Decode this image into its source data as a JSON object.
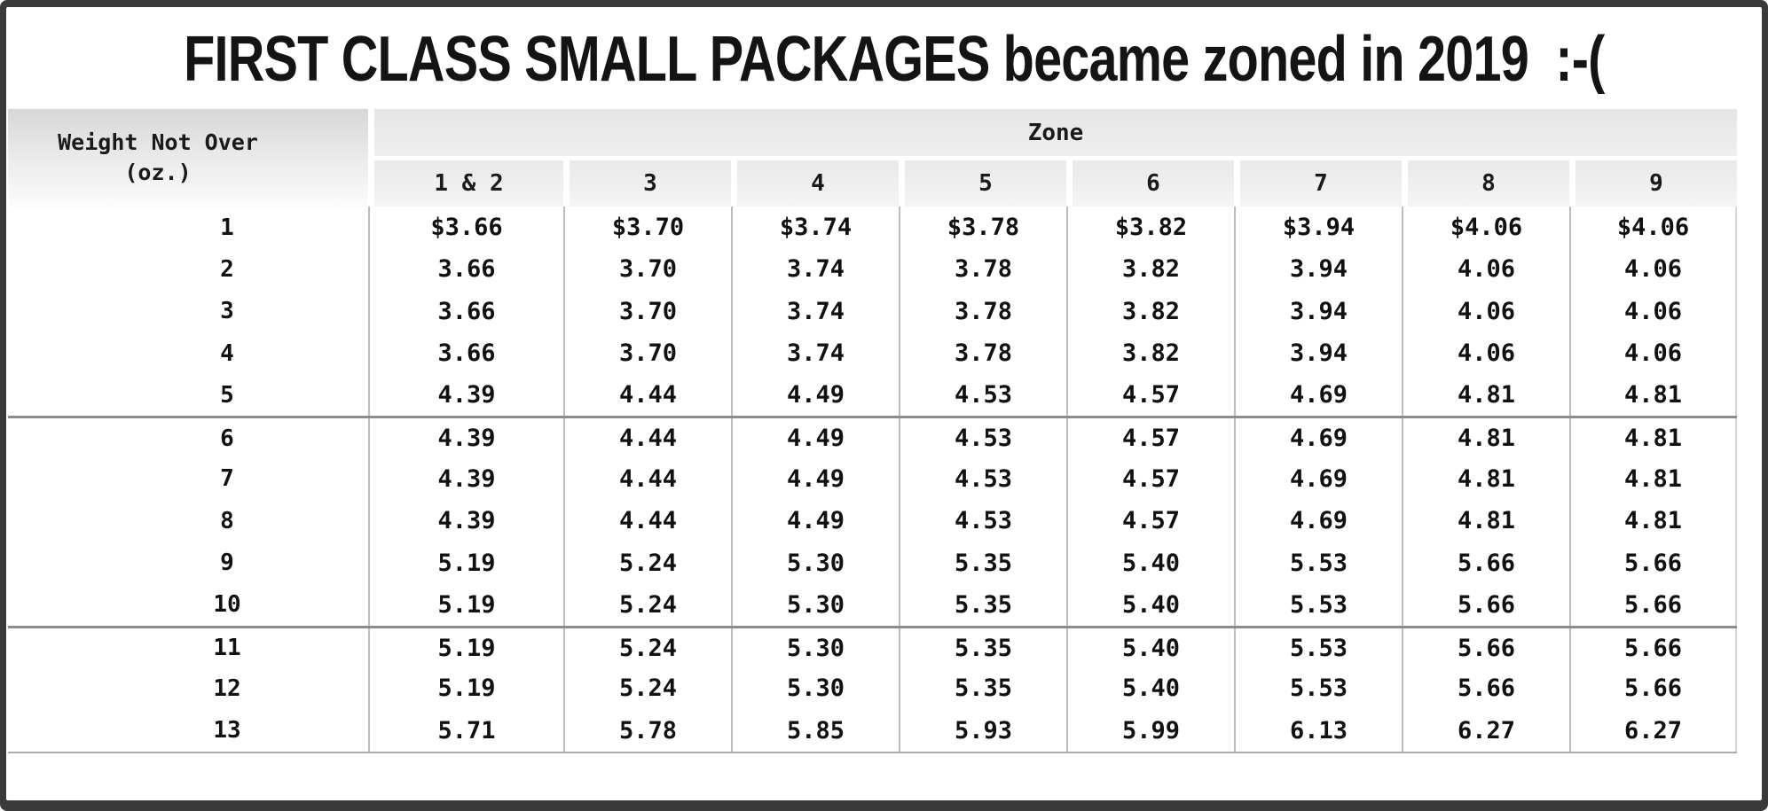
{
  "title": "FIRST CLASS SMALL PACKAGES became zoned in 2019  :-(",
  "table": {
    "weight_header_line1": "Weight Not Over",
    "weight_header_line2": "(oz.)",
    "zone_group_header": "Zone",
    "zone_columns": [
      "1 & 2",
      "3",
      "4",
      "5",
      "6",
      "7",
      "8",
      "9"
    ],
    "group_separators_before_weights": [
      "6",
      "11"
    ]
  },
  "chart_data": {
    "type": "table",
    "title": "FIRST CLASS SMALL PACKAGES became zoned in 2019  :-(",
    "column_group_header": {
      "label": "Zone",
      "applies_to": [
        "1 & 2",
        "3",
        "4",
        "5",
        "6",
        "7",
        "8",
        "9"
      ]
    },
    "columns": [
      "Weight Not Over (oz.)",
      "1 & 2",
      "3",
      "4",
      "5",
      "6",
      "7",
      "8",
      "9"
    ],
    "rows": [
      [
        "1",
        "$3.66",
        "$3.70",
        "$3.74",
        "$3.78",
        "$3.82",
        "$3.94",
        "$4.06",
        "$4.06"
      ],
      [
        "2",
        "3.66",
        "3.70",
        "3.74",
        "3.78",
        "3.82",
        "3.94",
        "4.06",
        "4.06"
      ],
      [
        "3",
        "3.66",
        "3.70",
        "3.74",
        "3.78",
        "3.82",
        "3.94",
        "4.06",
        "4.06"
      ],
      [
        "4",
        "3.66",
        "3.70",
        "3.74",
        "3.78",
        "3.82",
        "3.94",
        "4.06",
        "4.06"
      ],
      [
        "5",
        "4.39",
        "4.44",
        "4.49",
        "4.53",
        "4.57",
        "4.69",
        "4.81",
        "4.81"
      ],
      [
        "6",
        "4.39",
        "4.44",
        "4.49",
        "4.53",
        "4.57",
        "4.69",
        "4.81",
        "4.81"
      ],
      [
        "7",
        "4.39",
        "4.44",
        "4.49",
        "4.53",
        "4.57",
        "4.69",
        "4.81",
        "4.81"
      ],
      [
        "8",
        "4.39",
        "4.44",
        "4.49",
        "4.53",
        "4.57",
        "4.69",
        "4.81",
        "4.81"
      ],
      [
        "9",
        "5.19",
        "5.24",
        "5.30",
        "5.35",
        "5.40",
        "5.53",
        "5.66",
        "5.66"
      ],
      [
        "10",
        "5.19",
        "5.24",
        "5.30",
        "5.35",
        "5.40",
        "5.53",
        "5.66",
        "5.66"
      ],
      [
        "11",
        "5.19",
        "5.24",
        "5.30",
        "5.35",
        "5.40",
        "5.53",
        "5.66",
        "5.66"
      ],
      [
        "12",
        "5.19",
        "5.24",
        "5.30",
        "5.35",
        "5.40",
        "5.53",
        "5.66",
        "5.66"
      ],
      [
        "13",
        "5.71",
        "5.78",
        "5.85",
        "5.93",
        "5.99",
        "6.13",
        "6.27",
        "6.27"
      ]
    ]
  }
}
